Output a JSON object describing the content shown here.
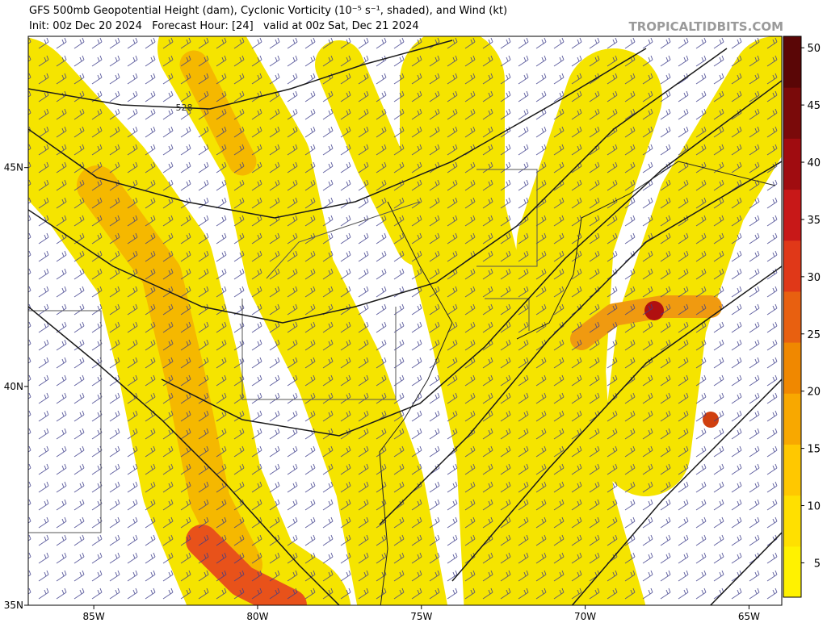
{
  "header": {
    "title": "GFS 500mb Geopotential Height (dam), Cyclonic Vorticity (10⁻⁵ s⁻¹, shaded), and Wind (kt)",
    "subtitle": "Init: 00z Dec 20 2024   Forecast Hour: [24]   valid at 00z Sat, Dec 21 2024",
    "watermark": "TROPICALTIDBITS.COM"
  },
  "map": {
    "lonlim": [
      -87,
      -64
    ],
    "latlim": [
      35,
      48
    ],
    "lonticks": [
      {
        "value": -85,
        "label": "85W"
      },
      {
        "value": -80,
        "label": "80W"
      },
      {
        "value": -75,
        "label": "75W"
      },
      {
        "value": -70,
        "label": "70W"
      },
      {
        "value": -65,
        "label": "65W"
      }
    ],
    "latticks": [
      {
        "value": 45,
        "label": "45N"
      },
      {
        "value": 40,
        "label": "40N"
      },
      {
        "value": 35,
        "label": "35N"
      }
    ],
    "contour_label": "528"
  },
  "colorbar": {
    "range": [
      2,
      51
    ],
    "ticks": [
      5,
      10,
      15,
      20,
      25,
      30,
      35,
      40,
      45,
      50
    ]
  }
}
